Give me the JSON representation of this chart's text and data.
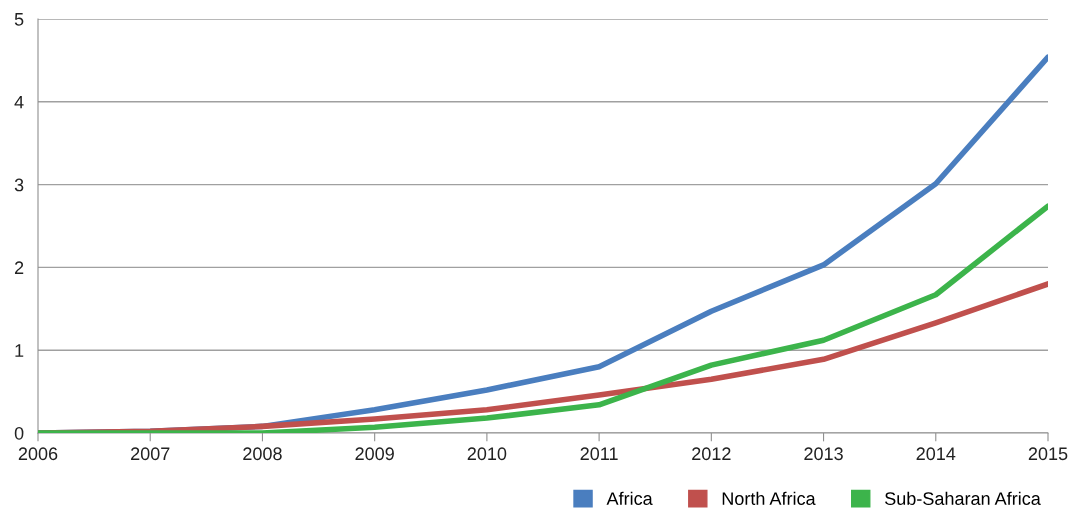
{
  "chart_data": {
    "type": "line",
    "x": [
      2006,
      2007,
      2008,
      2009,
      2010,
      2011,
      2012,
      2013,
      2014,
      2015
    ],
    "xlim": [
      2006,
      2015
    ],
    "xticks": [
      2006,
      2007,
      2008,
      2009,
      2010,
      2011,
      2012,
      2013,
      2014,
      2015
    ],
    "ylim": [
      0,
      5
    ],
    "yticks": [
      0,
      1,
      2,
      3,
      4,
      5
    ],
    "grid": "y",
    "legend": "bottom right",
    "marker": "none",
    "line_style": "solid",
    "series": [
      {
        "name": "Africa",
        "color": "#4a7ebf",
        "values": [
          0,
          0.02,
          0.08,
          0.28,
          0.52,
          0.8,
          1.47,
          2.03,
          3.01,
          4.54
        ]
      },
      {
        "name": "North Africa",
        "color": "#c0504d",
        "values": [
          0,
          0.02,
          0.08,
          0.17,
          0.28,
          0.46,
          0.65,
          0.89,
          1.33,
          1.8
        ]
      },
      {
        "name": "Sub-Saharan Africa",
        "color": "#3cb44b",
        "values": [
          0,
          0,
          0,
          0.07,
          0.18,
          0.34,
          0.82,
          1.12,
          1.67,
          2.74
        ]
      }
    ]
  }
}
